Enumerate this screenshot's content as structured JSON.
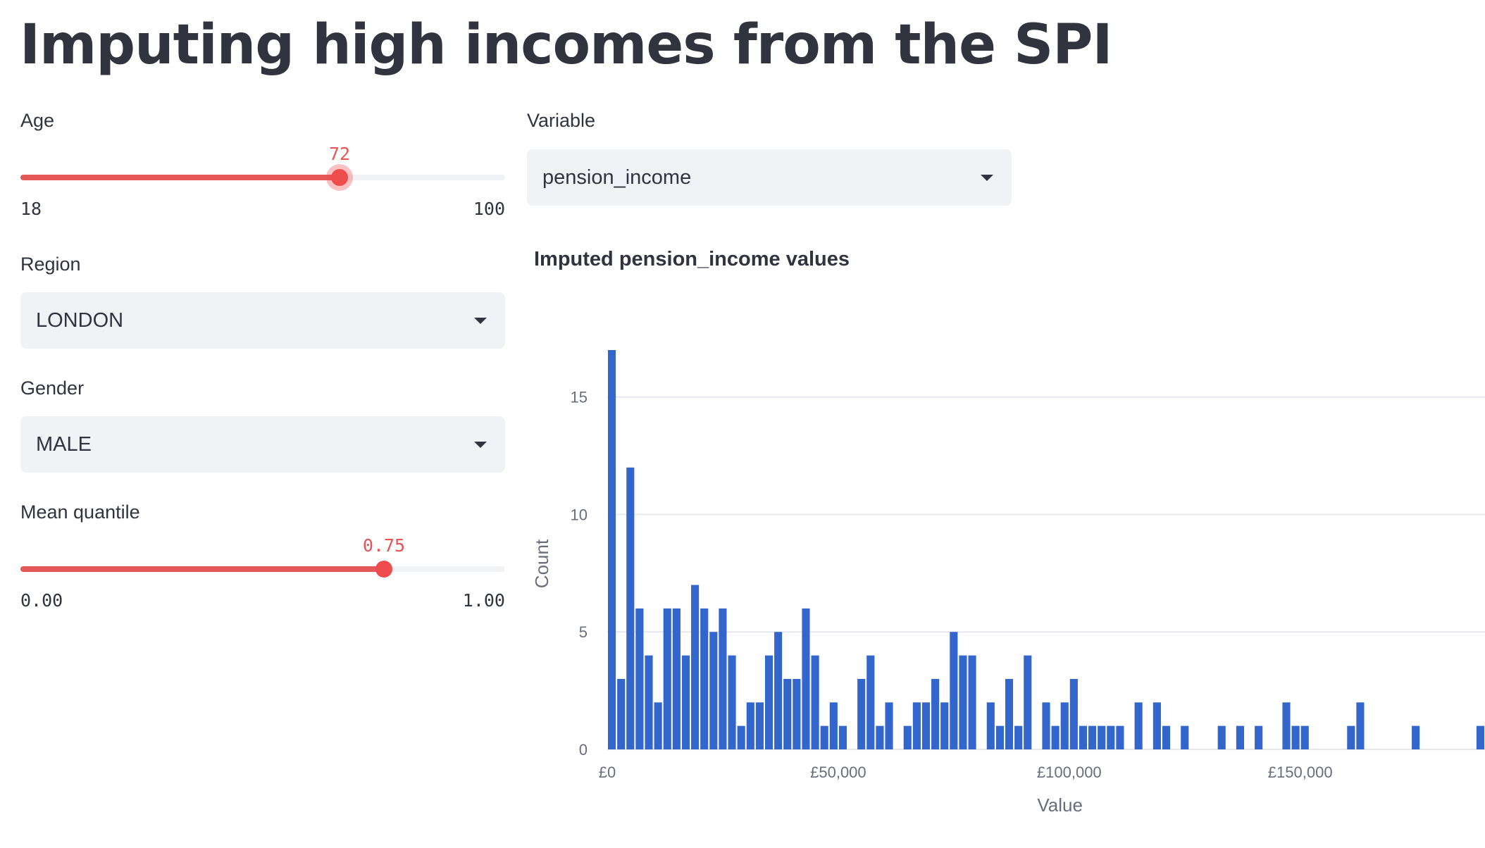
{
  "page": {
    "title": "Imputing high incomes from the SPI"
  },
  "age_slider": {
    "label": "Age",
    "value": 72,
    "min": 18,
    "max": 100,
    "value_text": "72",
    "min_text": "18",
    "max_text": "100"
  },
  "region_select": {
    "label": "Region",
    "value": "LONDON",
    "icon": "chevron-down-icon"
  },
  "gender_select": {
    "label": "Gender",
    "value": "MALE",
    "icon": "chevron-down-icon"
  },
  "quantile_slider": {
    "label": "Mean quantile",
    "value": 0.75,
    "min": 0,
    "max": 1,
    "value_text": "0.75",
    "min_text": "0.00",
    "max_text": "1.00"
  },
  "variable_select": {
    "label": "Variable",
    "value": "pension_income",
    "icon": "chevron-down-icon"
  },
  "colors": {
    "accent": "#e45756",
    "slider_thumb": "#ef4d4d",
    "bar": "#3366cc",
    "input_bg": "#f0f2f6",
    "text": "#31333f"
  },
  "chart_data": {
    "type": "bar",
    "title": "Imputed pension_income values",
    "xlabel": "Value",
    "ylabel": "Count",
    "xlim": [
      0,
      190000
    ],
    "ylim": [
      0,
      17
    ],
    "grid": true,
    "bin_width": 2000,
    "x_ticks": [
      {
        "value": 0,
        "label": "£0"
      },
      {
        "value": 50000,
        "label": "£50,000"
      },
      {
        "value": 100000,
        "label": "£100,000"
      },
      {
        "value": 150000,
        "label": "£150,000"
      }
    ],
    "y_ticks": [
      {
        "value": 0,
        "label": "0"
      },
      {
        "value": 5,
        "label": "5"
      },
      {
        "value": 10,
        "label": "10"
      },
      {
        "value": 15,
        "label": "15"
      }
    ],
    "bars": [
      {
        "x": 0,
        "y": 17
      },
      {
        "x": 2000,
        "y": 3
      },
      {
        "x": 4000,
        "y": 12
      },
      {
        "x": 6000,
        "y": 6
      },
      {
        "x": 8000,
        "y": 4
      },
      {
        "x": 10000,
        "y": 2
      },
      {
        "x": 12000,
        "y": 6
      },
      {
        "x": 14000,
        "y": 6
      },
      {
        "x": 16000,
        "y": 4
      },
      {
        "x": 18000,
        "y": 7
      },
      {
        "x": 20000,
        "y": 6
      },
      {
        "x": 22000,
        "y": 5
      },
      {
        "x": 24000,
        "y": 6
      },
      {
        "x": 26000,
        "y": 4
      },
      {
        "x": 28000,
        "y": 1
      },
      {
        "x": 30000,
        "y": 2
      },
      {
        "x": 32000,
        "y": 2
      },
      {
        "x": 34000,
        "y": 4
      },
      {
        "x": 36000,
        "y": 5
      },
      {
        "x": 38000,
        "y": 3
      },
      {
        "x": 40000,
        "y": 3
      },
      {
        "x": 42000,
        "y": 6
      },
      {
        "x": 44000,
        "y": 4
      },
      {
        "x": 46000,
        "y": 1
      },
      {
        "x": 48000,
        "y": 2
      },
      {
        "x": 50000,
        "y": 1
      },
      {
        "x": 54000,
        "y": 3
      },
      {
        "x": 56000,
        "y": 4
      },
      {
        "x": 58000,
        "y": 1
      },
      {
        "x": 60000,
        "y": 2
      },
      {
        "x": 64000,
        "y": 1
      },
      {
        "x": 66000,
        "y": 2
      },
      {
        "x": 68000,
        "y": 2
      },
      {
        "x": 70000,
        "y": 3
      },
      {
        "x": 72000,
        "y": 2
      },
      {
        "x": 74000,
        "y": 5
      },
      {
        "x": 76000,
        "y": 4
      },
      {
        "x": 78000,
        "y": 4
      },
      {
        "x": 82000,
        "y": 2
      },
      {
        "x": 84000,
        "y": 1
      },
      {
        "x": 86000,
        "y": 3
      },
      {
        "x": 88000,
        "y": 1
      },
      {
        "x": 90000,
        "y": 4
      },
      {
        "x": 94000,
        "y": 2
      },
      {
        "x": 96000,
        "y": 1
      },
      {
        "x": 98000,
        "y": 2
      },
      {
        "x": 100000,
        "y": 3
      },
      {
        "x": 102000,
        "y": 1
      },
      {
        "x": 104000,
        "y": 1
      },
      {
        "x": 106000,
        "y": 1
      },
      {
        "x": 108000,
        "y": 1
      },
      {
        "x": 110000,
        "y": 1
      },
      {
        "x": 114000,
        "y": 2
      },
      {
        "x": 118000,
        "y": 2
      },
      {
        "x": 120000,
        "y": 1
      },
      {
        "x": 124000,
        "y": 1
      },
      {
        "x": 132000,
        "y": 1
      },
      {
        "x": 136000,
        "y": 1
      },
      {
        "x": 140000,
        "y": 1
      },
      {
        "x": 146000,
        "y": 2
      },
      {
        "x": 148000,
        "y": 1
      },
      {
        "x": 150000,
        "y": 1
      },
      {
        "x": 160000,
        "y": 1
      },
      {
        "x": 162000,
        "y": 2
      },
      {
        "x": 174000,
        "y": 1
      },
      {
        "x": 188000,
        "y": 1
      }
    ]
  }
}
